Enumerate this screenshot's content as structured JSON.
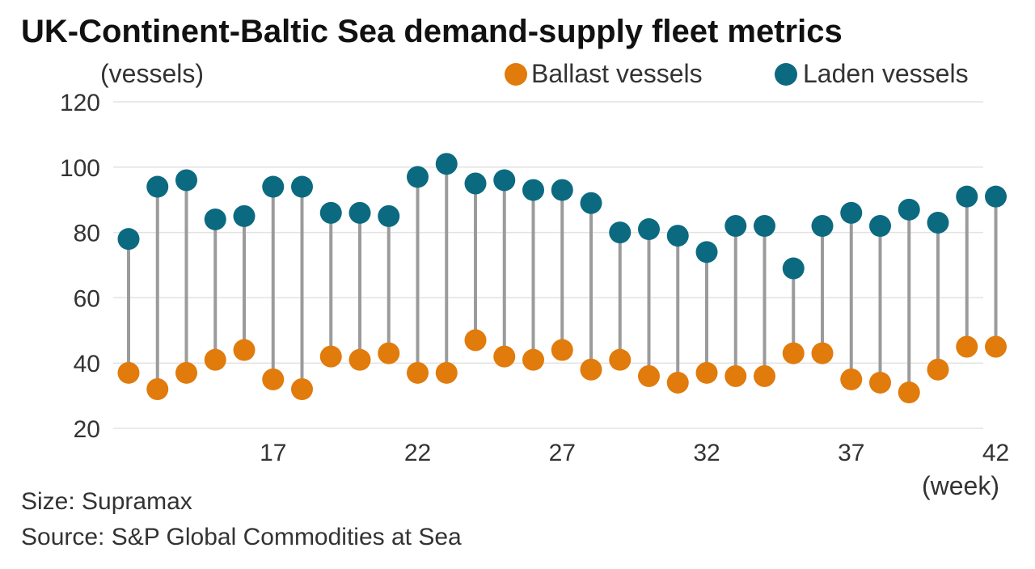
{
  "chart_data": {
    "type": "dumbbell",
    "title": "UK-Continent-Baltic Sea demand-supply fleet metrics",
    "ylabel": "(vessels)",
    "xlabel": "(week)",
    "ylim": [
      20,
      120
    ],
    "yticks": [
      20,
      40,
      60,
      80,
      100,
      120
    ],
    "xlim": [
      12,
      42
    ],
    "xticks": [
      17,
      22,
      27,
      32,
      37,
      42
    ],
    "x": [
      12,
      13,
      14,
      15,
      16,
      17,
      18,
      19,
      20,
      21,
      22,
      23,
      24,
      25,
      26,
      27,
      28,
      29,
      30,
      31,
      32,
      33,
      34,
      35,
      36,
      37,
      38,
      39,
      40,
      41,
      42
    ],
    "series": [
      {
        "name": "Ballast vessels",
        "color": "#e07b0c",
        "values": [
          37,
          32,
          37,
          41,
          44,
          35,
          32,
          42,
          41,
          43,
          37,
          37,
          47,
          42,
          41,
          44,
          38,
          41,
          36,
          34,
          37,
          36,
          36,
          43,
          43,
          35,
          34,
          31,
          38,
          45,
          45
        ]
      },
      {
        "name": "Laden vessels",
        "color": "#0b6a80",
        "values": [
          78,
          94,
          96,
          84,
          85,
          94,
          94,
          86,
          86,
          85,
          97,
          101,
          95,
          96,
          93,
          93,
          89,
          80,
          81,
          79,
          74,
          82,
          82,
          69,
          82,
          86,
          82,
          87,
          83,
          91,
          91
        ]
      }
    ],
    "legend_position": "top-right",
    "stem_color": "#9b9b9b",
    "grid": true
  },
  "notes": {
    "size": "Size: Supramax",
    "source": "Source: S&P Global Commodities at Sea"
  }
}
